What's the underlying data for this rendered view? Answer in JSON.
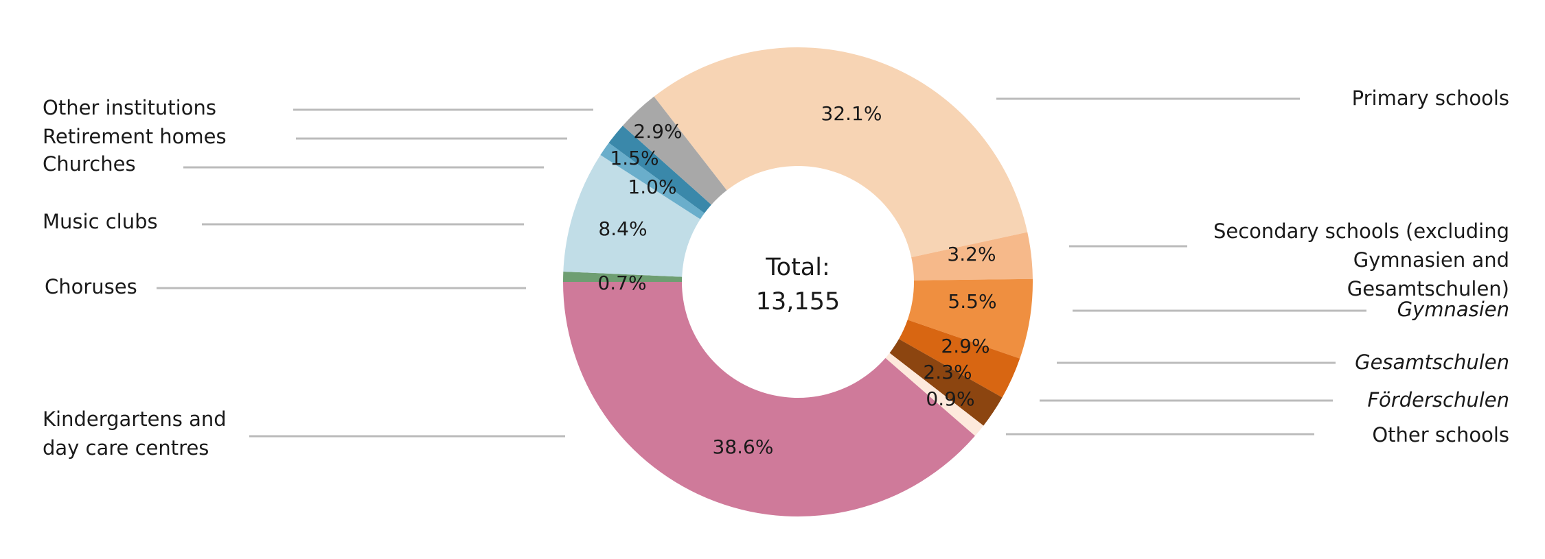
{
  "chart_data": {
    "type": "donut",
    "categories": [
      "Primary schools",
      "Secondary schools (excluding Gymnasien and Gesamtschulen)",
      "Gymnasien",
      "Gesamtschulen",
      "Förderschulen",
      "Other schools",
      "Kindergartens and day care centres",
      "Choruses",
      "Music clubs",
      "Churches",
      "Retirement homes",
      "Other institutions"
    ],
    "values": [
      32.1,
      3.2,
      5.5,
      2.9,
      2.3,
      0.9,
      38.6,
      0.7,
      8.4,
      1.0,
      1.5,
      2.9
    ],
    "value_labels": [
      "32.1%",
      "3.2%",
      "5.5%",
      "2.9%",
      "2.3%",
      "0.9%",
      "38.6%",
      "0.7%",
      "8.4%",
      "1.0%",
      "1.5%",
      "2.9%"
    ],
    "colors": [
      "#f7d4b4",
      "#f6b98a",
      "#ef8f40",
      "#d86612",
      "#8c4510",
      "#fde9dc",
      "#cf7a9a",
      "#6e9e72",
      "#c1dde7",
      "#6aaecb",
      "#3a88aa",
      "#a8a8a8"
    ],
    "total_label": "Total:",
    "total": {
      "value": 13155,
      "label": "13,155"
    }
  }
}
